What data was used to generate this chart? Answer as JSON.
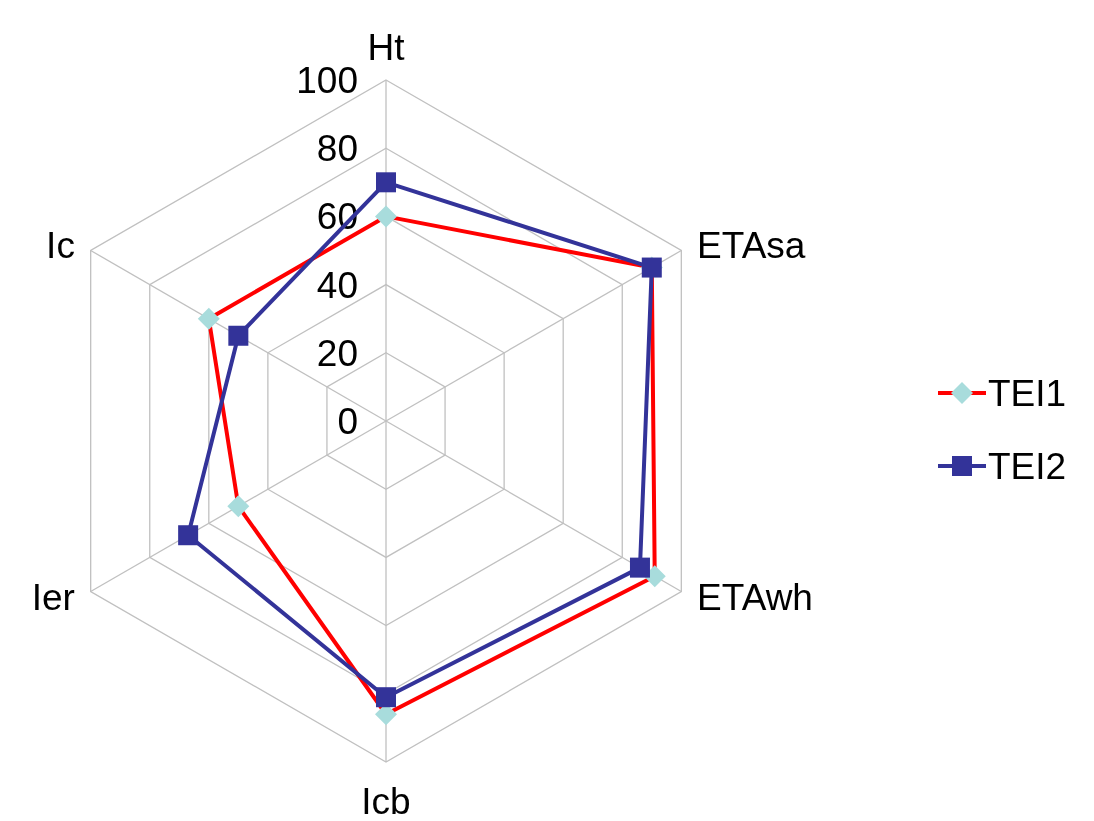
{
  "chart_data": {
    "type": "radar",
    "categories": [
      "Ht",
      "ETAsa",
      "ETAwh",
      "Icb",
      "Ier",
      "Ic"
    ],
    "series": [
      {
        "name": "TEI1",
        "color": "#ff0000",
        "marker": "diamond",
        "values": [
          60,
          90,
          91,
          86,
          50,
          60
        ]
      },
      {
        "name": "TEI2",
        "color": "#333399",
        "marker": "square",
        "values": [
          70,
          90,
          86,
          81,
          67,
          50
        ]
      }
    ],
    "ylim": [
      0,
      100
    ],
    "yticks": [
      0,
      20,
      40,
      60,
      80,
      100
    ],
    "grid": true,
    "legend": "right"
  }
}
